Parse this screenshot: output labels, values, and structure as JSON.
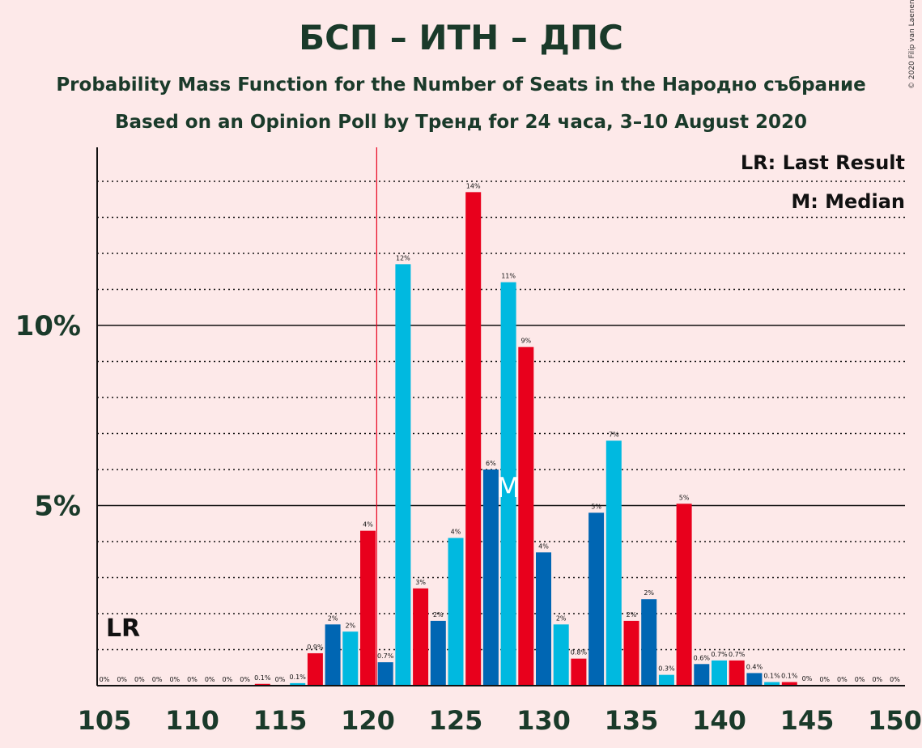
{
  "title": "БСП – ИТН – ДПС",
  "subtitle": "Probability Mass Function for the Number of Seats in the Народно събрание",
  "subtitle2": "Based on an Opinion Poll by Тренд for 24 часа, 3–10 August 2020",
  "copyright": "© 2020 Filip van Laenen",
  "legend": {
    "last_result": "LR: Last Result",
    "median": "M: Median"
  },
  "chart_data": {
    "type": "bar",
    "x": [
      105,
      106,
      107,
      108,
      109,
      110,
      111,
      112,
      113,
      114,
      115,
      116,
      117,
      118,
      119,
      120,
      121,
      122,
      123,
      124,
      125,
      126,
      127,
      128,
      129,
      130,
      131,
      132,
      133,
      134,
      135,
      136,
      137,
      138,
      139,
      140,
      141,
      142,
      143,
      144,
      145,
      146,
      147,
      148,
      149,
      150
    ],
    "values": [
      0,
      0,
      0,
      0,
      0,
      0,
      0,
      0,
      0,
      0.05,
      0,
      0.07,
      0.9,
      1.7,
      1.5,
      4.3,
      0.65,
      11.7,
      2.7,
      1.8,
      4.1,
      13.7,
      6.0,
      11.2,
      9.4,
      3.7,
      1.7,
      0.75,
      4.8,
      6.8,
      1.8,
      2.4,
      0.3,
      5.05,
      0.6,
      0.7,
      0.7,
      0.35,
      0.1,
      0.1,
      0.02,
      0,
      0,
      0,
      0,
      0
    ],
    "labels": [
      "0%",
      "0%",
      "0%",
      "0%",
      "0%",
      "0%",
      "0%",
      "0%",
      "0%",
      "0.1%",
      "0%",
      "0.1%",
      "0.9%",
      "2%",
      "2%",
      "4%",
      "0.7%",
      "12%",
      "3%",
      "2%",
      "4%",
      "14%",
      "6%",
      "11%",
      "9%",
      "4%",
      "2%",
      "0.8%",
      "5%",
      "7%",
      "2%",
      "2%",
      "0.3%",
      "5%",
      "0.6%",
      "0.7%",
      "0.7%",
      "0.4%",
      "0.1%",
      "0.1%",
      "0%",
      "0%",
      "0%",
      "0%",
      "0%",
      "0%"
    ],
    "colors": {
      "red": "#E8001C",
      "dark_blue": "#0066B3",
      "light_blue": "#00B9E0"
    },
    "x_ticks": [
      105,
      110,
      115,
      120,
      125,
      130,
      135,
      140,
      145,
      150
    ],
    "y_ticks": [
      {
        "value": 5,
        "label": "5%"
      },
      {
        "value": 10,
        "label": "10%"
      }
    ],
    "ylim": [
      0,
      15
    ],
    "last_result": 120.5,
    "last_result_label": "LR",
    "median": 128,
    "median_label": "M"
  }
}
